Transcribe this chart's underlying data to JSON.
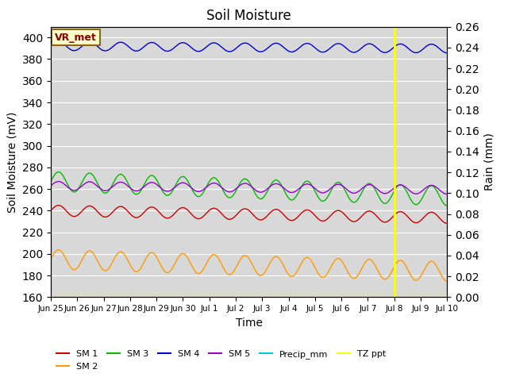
{
  "title": "Soil Moisture",
  "ylabel_left": "Soil Moisture (mV)",
  "ylabel_right": "Rain (mm)",
  "xlabel": "Time",
  "annotation_label": "VR_met",
  "ylim_left": [
    160,
    410
  ],
  "ylim_right": [
    0.0,
    0.26
  ],
  "yticks_left": [
    160,
    180,
    200,
    220,
    240,
    260,
    280,
    300,
    320,
    340,
    360,
    380,
    400
  ],
  "yticks_right": [
    0.0,
    0.02,
    0.04,
    0.06,
    0.08,
    0.1,
    0.12,
    0.14,
    0.16,
    0.18,
    0.2,
    0.22,
    0.24,
    0.26
  ],
  "vline_x": 13.0,
  "vline_color": "yellow",
  "background_color": "#d8d8d8",
  "series": {
    "SM1": {
      "color": "#cc0000",
      "base": 240,
      "amplitude": 5,
      "trend": -0.45,
      "freq": 0.85
    },
    "SM2": {
      "color": "#ff9900",
      "base": 195,
      "amplitude": 9,
      "trend": -0.75,
      "freq": 0.85
    },
    "SM3": {
      "color": "#00bb00",
      "base": 267,
      "amplitude": 9,
      "trend": -0.9,
      "freq": 0.85
    },
    "SM4": {
      "color": "#0000cc",
      "base": 392,
      "amplitude": 4,
      "trend": -0.15,
      "freq": 0.85
    },
    "SM5": {
      "color": "#9900cc",
      "base": 263,
      "amplitude": 4,
      "trend": -0.25,
      "freq": 0.85
    },
    "Precip_mm": {
      "color": "#00cccc",
      "base": 0.0,
      "amplitude": 0.0,
      "trend": 0.0,
      "freq": 0.0
    },
    "TZ_ppt": {
      "color": "#ffff00",
      "base": 160,
      "amplitude": 0.0,
      "trend": 0.0,
      "freq": 0.0
    }
  },
  "x_tick_labels": [
    "Jun 25",
    "Jun 26",
    "Jun 27",
    "Jun 28",
    "Jun 29",
    "Jun 30",
    "Jul 1",
    "Jul 2",
    "Jul 3",
    "Jul 4",
    "Jul 5",
    "Jul 6",
    "Jul 7",
    "Jul 8",
    "Jul 9",
    "Jul 10"
  ],
  "n_days": 15,
  "figsize": [
    6.4,
    4.8
  ],
  "dpi": 100
}
